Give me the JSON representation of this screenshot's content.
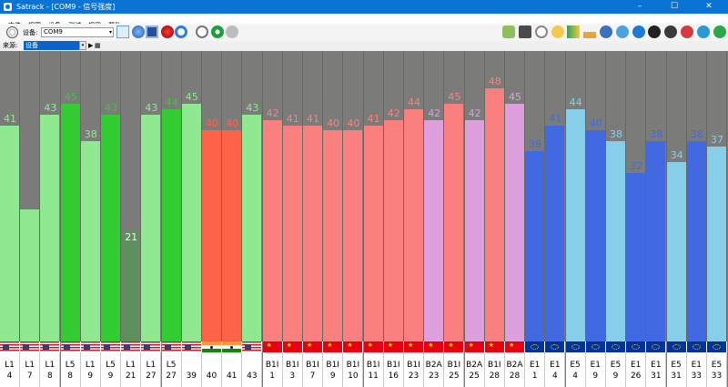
{
  "window": {
    "title": "Satrack - [COM9 - 信号强度]",
    "minimize": "–",
    "maximize": "☐",
    "close": "✕"
  },
  "menu": [
    "文件",
    "视图",
    "设备",
    "测试",
    "视窗",
    "帮助"
  ],
  "toolbar": {
    "device_label": "设备:",
    "device_value": "COM9",
    "device_arrow": "▾"
  },
  "source": {
    "label": "来源:",
    "value": "设备",
    "arrow": "▾"
  },
  "colors": {
    "gps_strong": "#33cc33",
    "gps": "#90e890",
    "gps_dim": "#5f8f5f",
    "irnss": "#ff6347",
    "beidou": "#fa8080",
    "beidou_b2a": "#dda0dd",
    "galileo_e1": "#4169e1",
    "galileo_e5": "#87ceeb"
  },
  "signals": [
    {
      "line1": "L1",
      "line2": "4",
      "value": "41",
      "level": 41,
      "flag": "us",
      "bar": "#90e890",
      "text": "#90e890"
    },
    {
      "line1": "L1",
      "line2": "7",
      "value": "25",
      "level": 25,
      "flag": "us",
      "bar": "#90e890",
      "text": "#90e890"
    },
    {
      "line1": "L1",
      "line2": "8",
      "value": "43",
      "level": 43,
      "flag": "us",
      "bar": "#90e890",
      "text": "#90e890"
    },
    {
      "line1": "L5",
      "line2": "8",
      "value": "45",
      "level": 45,
      "flag": "us",
      "bar": "#33cc33",
      "text": "#33cc33"
    },
    {
      "line1": "L1",
      "line2": "9",
      "value": "38",
      "level": 38,
      "flag": "us",
      "bar": "#90e890",
      "text": "#90e890"
    },
    {
      "line1": "L5",
      "line2": "9",
      "value": "43",
      "level": 43,
      "flag": "us",
      "bar": "#33cc33",
      "text": "#33cc33"
    },
    {
      "line1": "L1",
      "line2": "21",
      "value": "21",
      "level": 21,
      "flag": "us",
      "bar": "#5f8f5f",
      "text": "#f2f2f2"
    },
    {
      "line1": "L1",
      "line2": "27",
      "value": "43",
      "level": 43,
      "flag": "us",
      "bar": "#90e890",
      "text": "#90e890"
    },
    {
      "line1": "L5",
      "line2": "27",
      "value": "44",
      "level": 44,
      "flag": "us",
      "bar": "#33cc33",
      "text": "#33cc33"
    },
    {
      "line1": "",
      "line2": "39",
      "value": "45",
      "level": 45,
      "flag": "us",
      "bar": "#90e890",
      "text": "#90e890"
    },
    {
      "line1": "",
      "line2": "40",
      "value": "40",
      "level": 40,
      "flag": "in",
      "bar": "#ff6347",
      "text": "#ff6347"
    },
    {
      "line1": "",
      "line2": "41",
      "value": "40",
      "level": 40,
      "flag": "in",
      "bar": "#ff6347",
      "text": "#ff6347"
    },
    {
      "line1": "",
      "line2": "43",
      "value": "43",
      "level": 43,
      "flag": "us",
      "bar": "#90e890",
      "text": "#90e890"
    },
    {
      "line1": "B1I",
      "line2": "1",
      "value": "42",
      "level": 42,
      "flag": "cn",
      "bar": "#fa8080",
      "text": "#fa8080"
    },
    {
      "line1": "B1I",
      "line2": "3",
      "value": "41",
      "level": 41,
      "flag": "cn",
      "bar": "#fa8080",
      "text": "#fa8080"
    },
    {
      "line1": "B1I",
      "line2": "7",
      "value": "41",
      "level": 41,
      "flag": "cn",
      "bar": "#fa8080",
      "text": "#fa8080"
    },
    {
      "line1": "B1I",
      "line2": "9",
      "value": "40",
      "level": 40,
      "flag": "cn",
      "bar": "#fa8080",
      "text": "#fa8080"
    },
    {
      "line1": "B1I",
      "line2": "10",
      "value": "40",
      "level": 40,
      "flag": "cn",
      "bar": "#fa8080",
      "text": "#fa8080"
    },
    {
      "line1": "B1I",
      "line2": "11",
      "value": "41",
      "level": 41,
      "flag": "cn",
      "bar": "#fa8080",
      "text": "#fa8080"
    },
    {
      "line1": "B1I",
      "line2": "16",
      "value": "42",
      "level": 42,
      "flag": "cn",
      "bar": "#fa8080",
      "text": "#fa8080"
    },
    {
      "line1": "B1I",
      "line2": "23",
      "value": "44",
      "level": 44,
      "flag": "cn",
      "bar": "#fa8080",
      "text": "#fa8080"
    },
    {
      "line1": "B2A",
      "line2": "23",
      "value": "42",
      "level": 42,
      "flag": "cn",
      "bar": "#dda0dd",
      "text": "#dda0dd"
    },
    {
      "line1": "B1I",
      "line2": "25",
      "value": "45",
      "level": 45,
      "flag": "cn",
      "bar": "#fa8080",
      "text": "#fa8080"
    },
    {
      "line1": "B2A",
      "line2": "25",
      "value": "42",
      "level": 42,
      "flag": "cn",
      "bar": "#dda0dd",
      "text": "#dda0dd"
    },
    {
      "line1": "B1I",
      "line2": "28",
      "value": "48",
      "level": 48,
      "flag": "cn",
      "bar": "#fa8080",
      "text": "#fa8080"
    },
    {
      "line1": "B2A",
      "line2": "28",
      "value": "45",
      "level": 45,
      "flag": "cn",
      "bar": "#dda0dd",
      "text": "#dda0dd"
    },
    {
      "line1": "E1",
      "line2": "1",
      "value": "36",
      "level": 36,
      "flag": "eu",
      "bar": "#4169e1",
      "text": "#4169e1"
    },
    {
      "line1": "E1",
      "line2": "4",
      "value": "41",
      "level": 41,
      "flag": "eu",
      "bar": "#4169e1",
      "text": "#4169e1"
    },
    {
      "line1": "E5",
      "line2": "4",
      "value": "44",
      "level": 44,
      "flag": "eu",
      "bar": "#87ceeb",
      "text": "#87ceeb"
    },
    {
      "line1": "E1",
      "line2": "9",
      "value": "40",
      "level": 40,
      "flag": "eu",
      "bar": "#4169e1",
      "text": "#4169e1"
    },
    {
      "line1": "E5",
      "line2": "9",
      "value": "38",
      "level": 38,
      "flag": "eu",
      "bar": "#87ceeb",
      "text": "#87ceeb"
    },
    {
      "line1": "E1",
      "line2": "26",
      "value": "32",
      "level": 32,
      "flag": "eu",
      "bar": "#4169e1",
      "text": "#4169e1"
    },
    {
      "line1": "E1",
      "line2": "31",
      "value": "38",
      "level": 38,
      "flag": "eu",
      "bar": "#4169e1",
      "text": "#4169e1"
    },
    {
      "line1": "E5",
      "line2": "31",
      "value": "34",
      "level": 34,
      "flag": "eu",
      "bar": "#87ceeb",
      "text": "#87ceeb"
    },
    {
      "line1": "E1",
      "line2": "33",
      "value": "38",
      "level": 38,
      "flag": "eu",
      "bar": "#4169e1",
      "text": "#4169e1"
    },
    {
      "line1": "E5",
      "line2": "33",
      "value": "37",
      "level": 37,
      "flag": "eu",
      "bar": "#87ceeb",
      "text": "#87ceeb"
    }
  ]
}
